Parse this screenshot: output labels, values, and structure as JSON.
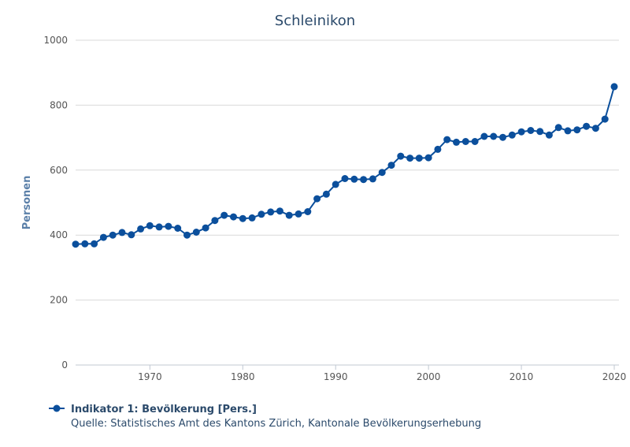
{
  "chart_data": {
    "type": "line",
    "title": "Schleinikon",
    "xlabel": "",
    "ylabel": "Personen",
    "xlim": [
      1962,
      2020
    ],
    "ylim": [
      0,
      1000
    ],
    "yticks": [
      0,
      200,
      400,
      600,
      800,
      1000
    ],
    "xticks": [
      1970,
      1980,
      1990,
      2000,
      2010,
      2020
    ],
    "grid": "horizontal",
    "legend_position": "bottom-left",
    "series": [
      {
        "name": "Indikator 1: Bevölkerung [Pers.]",
        "color": "#0b4f9c",
        "x": [
          1962,
          1963,
          1964,
          1965,
          1966,
          1967,
          1968,
          1969,
          1970,
          1971,
          1972,
          1973,
          1974,
          1975,
          1976,
          1977,
          1978,
          1979,
          1980,
          1981,
          1982,
          1983,
          1984,
          1985,
          1986,
          1987,
          1988,
          1989,
          1990,
          1991,
          1992,
          1993,
          1994,
          1995,
          1996,
          1997,
          1998,
          1999,
          2000,
          2001,
          2002,
          2003,
          2004,
          2005,
          2006,
          2007,
          2008,
          2009,
          2010,
          2011,
          2012,
          2013,
          2014,
          2015,
          2016,
          2017,
          2018,
          2019,
          2020
        ],
        "y": [
          372,
          373,
          373,
          393,
          400,
          408,
          401,
          419,
          429,
          425,
          427,
          421,
          400,
          409,
          422,
          445,
          461,
          456,
          451,
          453,
          464,
          471,
          474,
          461,
          465,
          472,
          512,
          526,
          556,
          574,
          572,
          571,
          573,
          593,
          615,
          643,
          637,
          637,
          638,
          664,
          694,
          686,
          688,
          688,
          704,
          704,
          701,
          708,
          718,
          722,
          719,
          708,
          731,
          721,
          724,
          735,
          729,
          757,
          857
        ]
      }
    ],
    "legend": {
      "label": "Indikator 1: Bevölkerung [Pers.]",
      "source": "Quelle: Statistisches Amt des Kantons Zürich, Kantonale Bevölkerungserhebung"
    }
  }
}
